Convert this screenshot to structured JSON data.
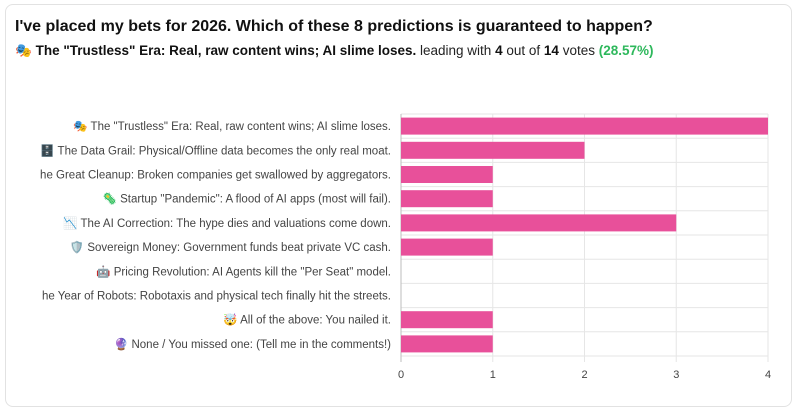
{
  "poll": {
    "question": "I've placed my bets for 2026. Which of these 8 predictions is guaranteed to happen?",
    "leader_emoji": "🎭",
    "leader_label": "The \"Trustless\" Era: Real, raw content wins; AI slime loses.",
    "leading_with_text": "leading with",
    "leader_votes": "4",
    "out_of_text": "out of",
    "total_votes": "14",
    "votes_text": "votes",
    "leader_pct": "(28.57%)"
  },
  "colors": {
    "bar": "#e8509a",
    "grid": "#e6e6e6",
    "axis": "#bdbdbd",
    "label": "#444444",
    "pct_green": "#2eb85c"
  },
  "chart_data": {
    "type": "bar",
    "orientation": "horizontal",
    "title": "",
    "xlabel": "",
    "ylabel": "",
    "xlim": [
      0,
      4
    ],
    "xticks": [
      0,
      1,
      2,
      3,
      4
    ],
    "categories": [
      "🎭 The \"Trustless\" Era: Real, raw content wins; AI slime loses.",
      "🗄️ The Data Grail: Physical/Offline data becomes the only real moat.",
      "he Great Cleanup: Broken companies get swallowed by aggregators.",
      "🦠 Startup \"Pandemic\": A flood of AI apps (most will fail).",
      "📉 The AI Correction: The hype dies and valuations come down.",
      "🛡️ Sovereign Money: Government funds beat private VC cash.",
      "🤖 Pricing Revolution: AI Agents kill the \"Per Seat\" model.",
      "he Year of Robots: Robotaxis and physical tech finally hit the streets.",
      "🤯 All of the above: You nailed it.",
      "🔮 None / You missed one: (Tell me in the comments!)"
    ],
    "values": [
      4,
      2,
      1,
      1,
      3,
      1,
      0,
      0,
      1,
      1
    ]
  }
}
